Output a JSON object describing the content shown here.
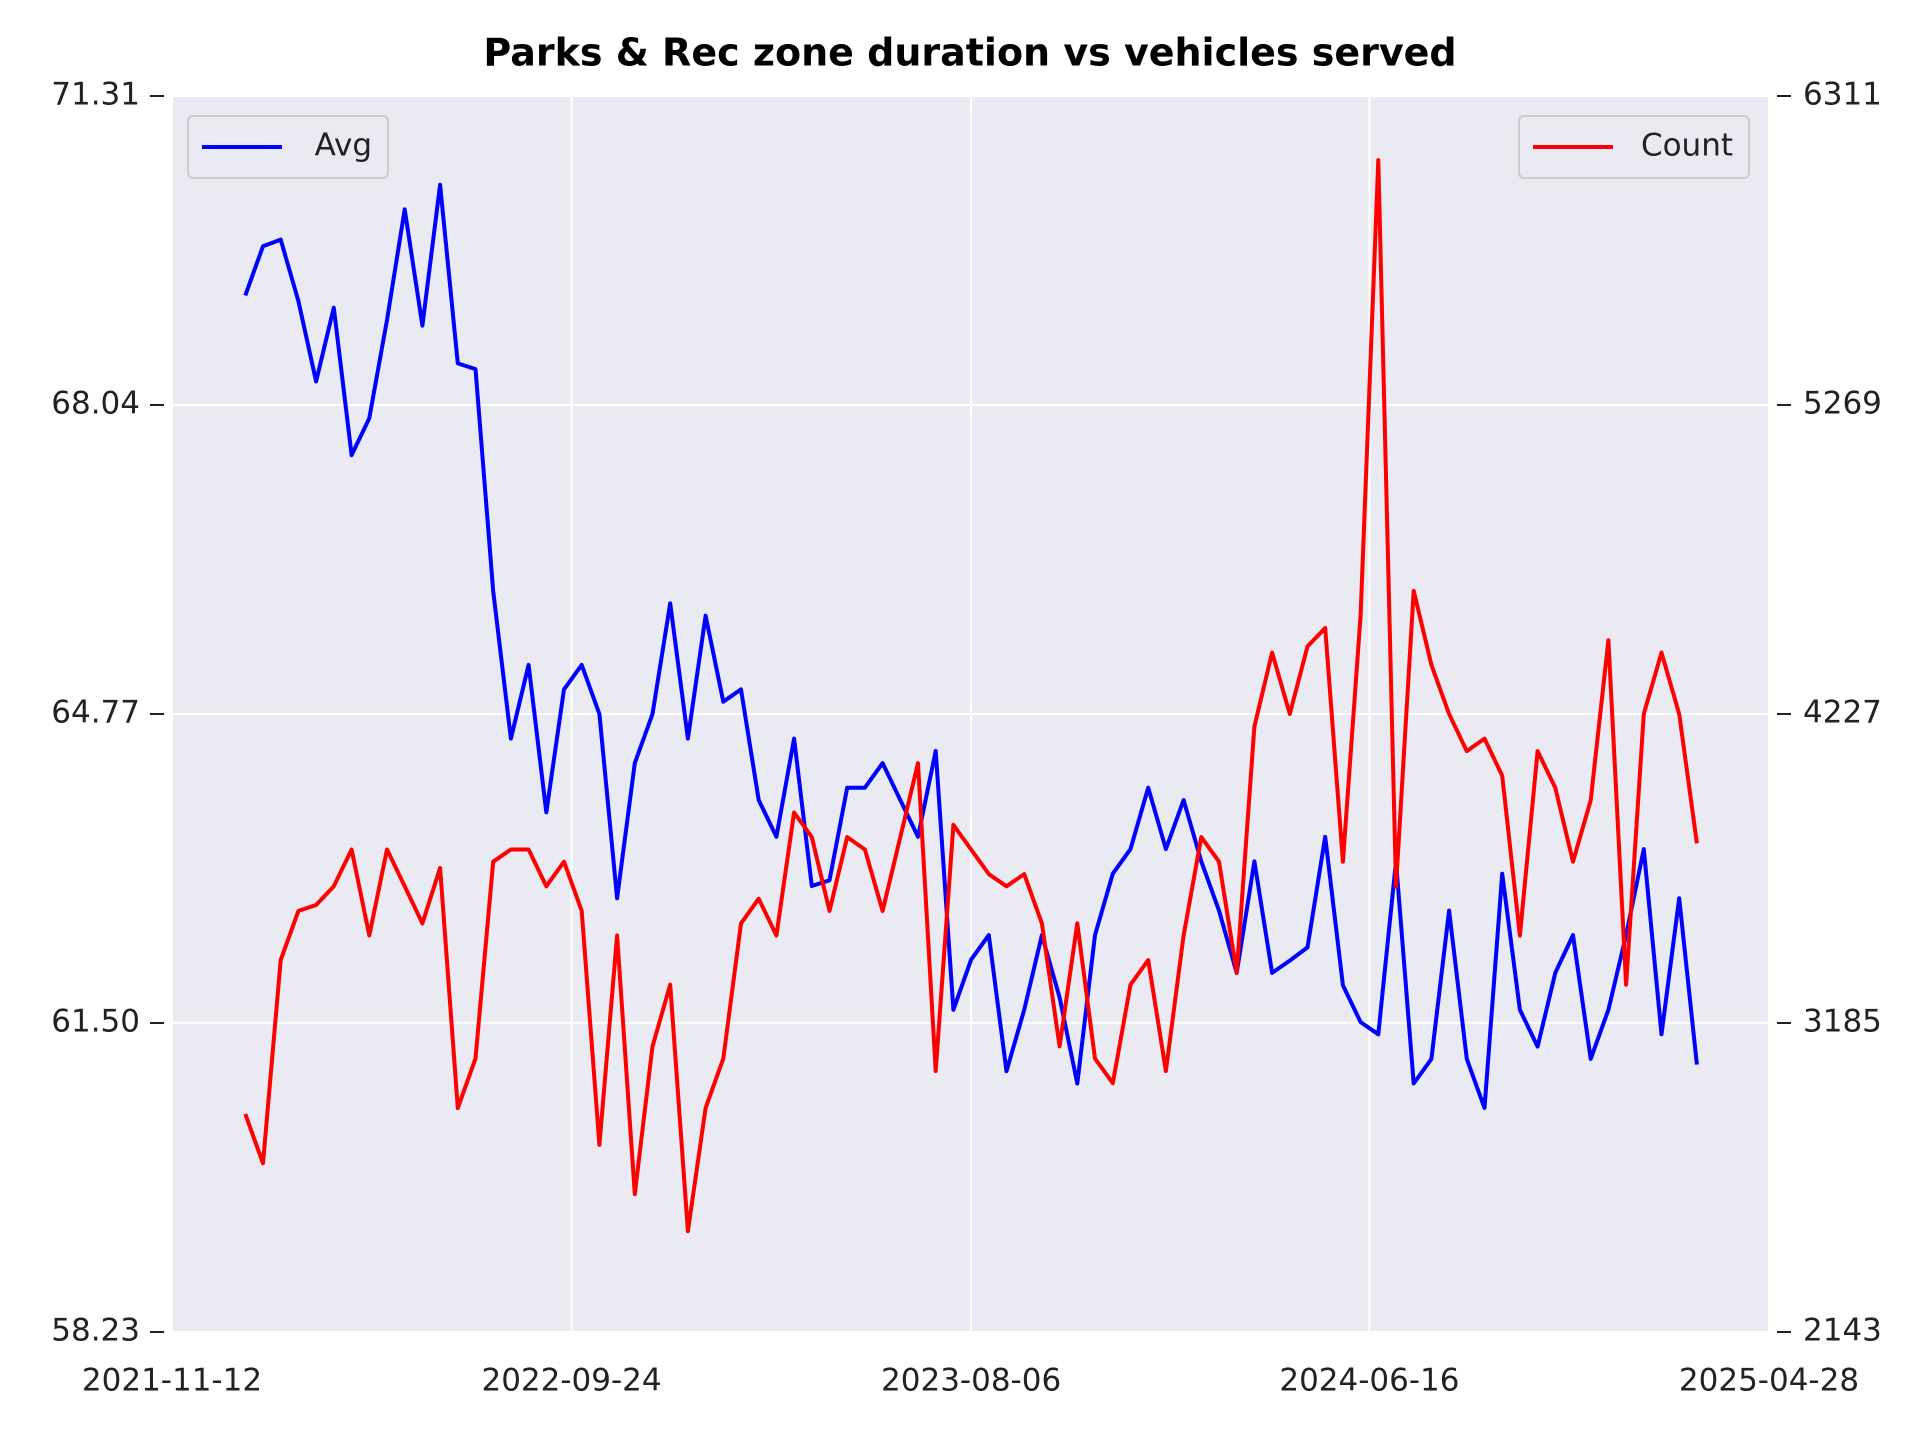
{
  "chart_data": {
    "type": "line",
    "title": "Parks & Rec zone duration vs vehicles served",
    "x": [
      "2022-01-09",
      "2022-01-23",
      "2022-02-06",
      "2022-02-20",
      "2022-03-06",
      "2022-03-20",
      "2022-04-03",
      "2022-04-17",
      "2022-05-01",
      "2022-05-15",
      "2022-05-29",
      "2022-06-12",
      "2022-06-26",
      "2022-07-10",
      "2022-07-24",
      "2022-08-07",
      "2022-08-21",
      "2022-09-04",
      "2022-09-18",
      "2022-10-02",
      "2022-10-16",
      "2022-10-30",
      "2022-11-13",
      "2022-11-27",
      "2022-12-11",
      "2022-12-25",
      "2023-01-08",
      "2023-01-22",
      "2023-02-05",
      "2023-02-19",
      "2023-03-05",
      "2023-03-19",
      "2023-04-02",
      "2023-04-16",
      "2023-04-30",
      "2023-05-14",
      "2023-05-28",
      "2023-06-11",
      "2023-06-25",
      "2023-07-09",
      "2023-07-23",
      "2023-08-06",
      "2023-08-20",
      "2023-09-03",
      "2023-09-17",
      "2023-10-01",
      "2023-10-15",
      "2023-10-29",
      "2023-11-12",
      "2023-11-26",
      "2023-12-10",
      "2023-12-24",
      "2024-01-07",
      "2024-01-21",
      "2024-02-04",
      "2024-02-18",
      "2024-03-03",
      "2024-03-17",
      "2024-03-31",
      "2024-04-14",
      "2024-04-28",
      "2024-05-12",
      "2024-05-26",
      "2024-06-09",
      "2024-06-23",
      "2024-07-07",
      "2024-07-21",
      "2024-08-04",
      "2024-08-18",
      "2024-09-01",
      "2024-09-15",
      "2024-09-29",
      "2024-10-13",
      "2024-10-27",
      "2024-11-10",
      "2024-11-24",
      "2024-12-08",
      "2024-12-22",
      "2025-01-05",
      "2025-01-19",
      "2025-02-02",
      "2025-02-16",
      "2025-03-02"
    ],
    "xlim": [
      "2021-11-12",
      "2025-04-28"
    ],
    "xticks": [
      "2021-11-12",
      "2022-09-24",
      "2023-08-06",
      "2024-06-16",
      "2025-04-28"
    ],
    "ylim": [
      58.23,
      71.31
    ],
    "yticks": [
      58.23,
      {
        "value": 61.5,
        "label": "61.50"
      },
      64.77,
      68.04,
      71.31
    ],
    "y2lim": [
      2143,
      6311
    ],
    "y2ticks": [
      2143,
      3185,
      4227,
      5269,
      6311
    ],
    "grid": true,
    "series": [
      {
        "name": "Avg",
        "color": "#0000ff",
        "axis": "y",
        "legend_loc": "upper left",
        "values": [
          69.2,
          69.72,
          69.79,
          69.14,
          68.29,
          69.07,
          67.51,
          67.9,
          68.94,
          70.11,
          68.88,
          70.37,
          68.48,
          68.42,
          66.07,
          64.51,
          65.29,
          63.73,
          65.03,
          65.29,
          64.77,
          62.82,
          64.25,
          64.77,
          65.94,
          64.51,
          65.81,
          64.9,
          65.03,
          63.86,
          63.47,
          64.51,
          62.95,
          63.01,
          63.99,
          63.99,
          64.25,
          63.86,
          63.47,
          64.38,
          61.64,
          62.17,
          62.43,
          60.99,
          61.64,
          62.43,
          61.77,
          60.86,
          62.43,
          63.08,
          63.34,
          63.99,
          63.34,
          63.86,
          63.21,
          62.69,
          62.03,
          63.21,
          62.03,
          62.16,
          62.3,
          63.47,
          61.9,
          61.51,
          61.38,
          63.21,
          60.86,
          61.12,
          62.69,
          61.12,
          60.6,
          63.08,
          61.64,
          61.25,
          62.03,
          62.43,
          61.12,
          61.64,
          62.43,
          63.34,
          61.38,
          62.82,
          61.06
        ]
      },
      {
        "name": "Count",
        "color": "#ff0000",
        "axis": "y2",
        "legend_loc": "upper right",
        "values": [
          2878,
          2712,
          3397,
          3563,
          3583,
          3646,
          3770,
          3480,
          3770,
          3646,
          3521,
          3708,
          2898,
          3065,
          3729,
          3770,
          3770,
          3646,
          3729,
          3563,
          2774,
          3480,
          2608,
          3106,
          3314,
          2483,
          2898,
          3065,
          3521,
          3604,
          3480,
          3895,
          3812,
          3563,
          3812,
          3770,
          3563,
          3812,
          4061,
          3023,
          3853,
          3770,
          3687,
          3646,
          3687,
          3521,
          3106,
          3521,
          3065,
          2982,
          3314,
          3397,
          3023,
          3480,
          3812,
          3729,
          3355,
          4185,
          4434,
          4227,
          4455,
          4517,
          3729,
          4559,
          6095,
          3646,
          4642,
          4393,
          4227,
          4102,
          4144,
          4019,
          3480,
          4102,
          3978,
          3729,
          3936,
          4476,
          3314,
          4227,
          4434,
          4227,
          3791
        ]
      }
    ]
  }
}
